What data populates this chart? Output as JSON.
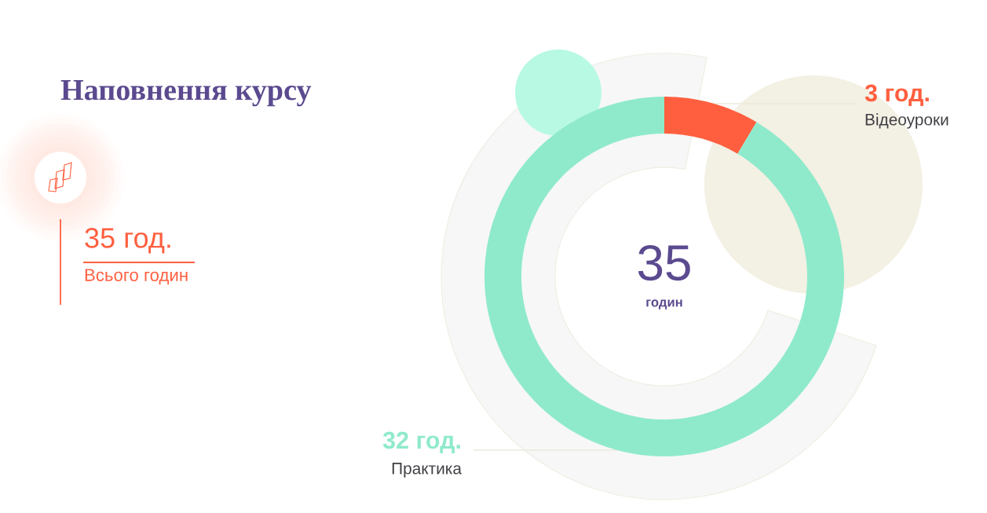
{
  "chart_data": {
    "type": "donut",
    "title": "Наповнення курсу",
    "categories": [
      "Відеоуроки",
      "Практика"
    ],
    "values": [
      3,
      32
    ],
    "colors": [
      "#ff5f3f",
      "#8feacb"
    ],
    "value_labels": [
      "3 год.",
      "32 год."
    ],
    "annotations": [
      "35",
      "годин",
      "35 год.",
      "Всього годин"
    ]
  }
}
